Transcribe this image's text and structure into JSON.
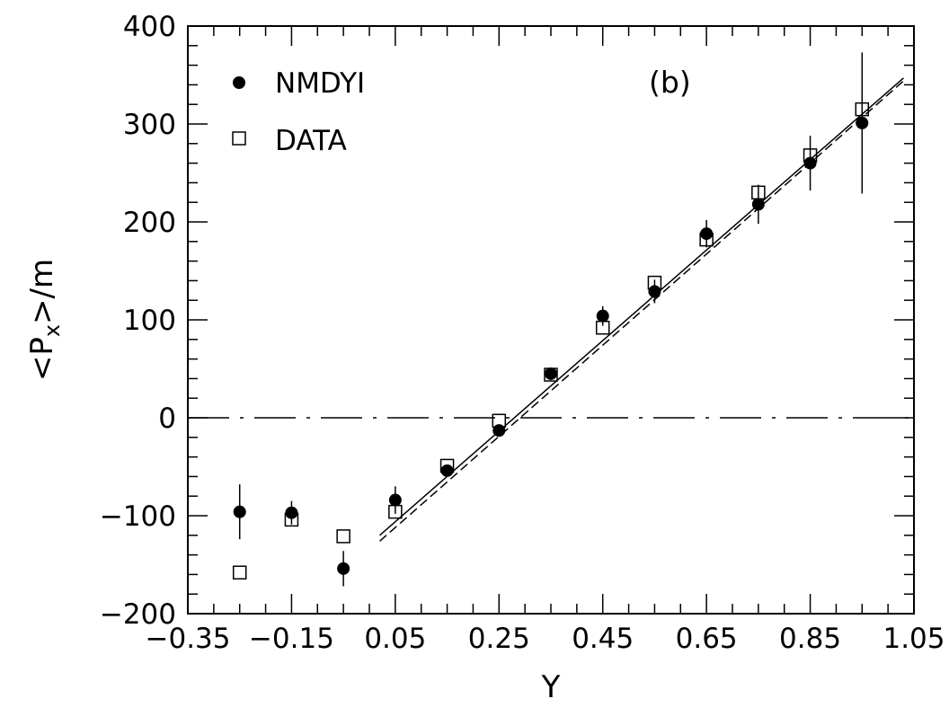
{
  "chart_data": {
    "type": "scatter",
    "panel_label": "(b)",
    "xlabel": "Y",
    "ylabel_parts": {
      "open": "<P",
      "sub": "x",
      "close": ">/m"
    },
    "xlim": [
      -0.35,
      1.05
    ],
    "ylim": [
      -200,
      400
    ],
    "x_ticks": [
      -0.35,
      -0.15,
      0.05,
      0.25,
      0.45,
      0.65,
      0.85,
      1.05
    ],
    "x_tick_labels": [
      "−0.35",
      "−0.15",
      "0.05",
      "0.25",
      "0.45",
      "0.65",
      "0.85",
      "1.05"
    ],
    "y_ticks": [
      -200,
      -100,
      0,
      100,
      200,
      300,
      400
    ],
    "y_tick_labels": [
      "−200",
      "−100",
      "0",
      "100",
      "200",
      "300",
      "400"
    ],
    "grid": false,
    "legend_position": "top-left",
    "series": [
      {
        "name": "NMDYI",
        "marker": "filled-circle",
        "x": [
          -0.25,
          -0.15,
          -0.05,
          0.05,
          0.15,
          0.25,
          0.35,
          0.45,
          0.55,
          0.65,
          0.75,
          0.85,
          0.95
        ],
        "y": [
          -96,
          -97,
          -154,
          -84,
          -54,
          -13,
          45,
          104,
          129,
          188,
          218,
          260,
          301
        ],
        "yerr": [
          28,
          12,
          18,
          14,
          6,
          5,
          5,
          10,
          12,
          14,
          20,
          28,
          72
        ]
      },
      {
        "name": "DATA",
        "marker": "open-square",
        "x": [
          -0.25,
          -0.15,
          -0.05,
          0.05,
          0.15,
          0.25,
          0.35,
          0.45,
          0.55,
          0.65,
          0.75,
          0.85,
          0.95
        ],
        "y": [
          -158,
          -104,
          -121,
          -96,
          -49,
          -3,
          44,
          92,
          138,
          182,
          230,
          268,
          315
        ],
        "yerr": [
          0,
          0,
          0,
          0,
          0,
          0,
          0,
          0,
          0,
          0,
          0,
          0,
          0
        ]
      }
    ],
    "fit_lines": [
      {
        "style": "solid",
        "x": [
          0.02,
          1.03
        ],
        "y": [
          -120,
          347
        ]
      },
      {
        "style": "dashed",
        "x": [
          0.02,
          1.03
        ],
        "y": [
          -126,
          344
        ]
      }
    ],
    "reference_line": {
      "y": 0,
      "style": "dash-dot"
    }
  }
}
